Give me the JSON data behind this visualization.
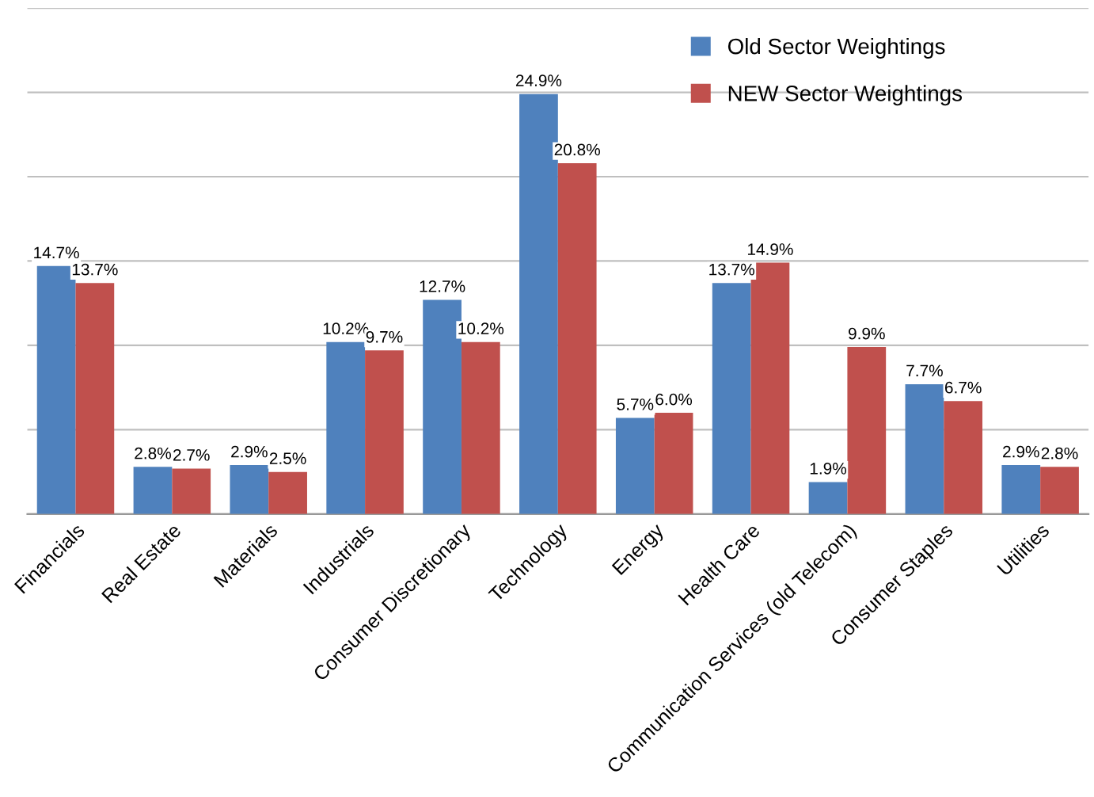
{
  "chart_data": {
    "type": "bar",
    "categories": [
      "Financials",
      "Real Estate",
      "Materials",
      "Industrials",
      "Consumer Discretionary",
      "Technology",
      "Energy",
      "Health Care",
      "Communication Services (old Telecom)",
      "Consumer Staples",
      "Utilities"
    ],
    "series": [
      {
        "name": "Old Sector Weightings",
        "color": "#4f81bd",
        "values": [
          14.7,
          2.8,
          2.9,
          10.2,
          12.7,
          24.9,
          5.7,
          13.7,
          1.9,
          7.7,
          2.9
        ],
        "value_labels": [
          "14.7%",
          "2.8%",
          "2.9%",
          "10.2%",
          "12.7%",
          "24.9%",
          "5.7%",
          "13.7%",
          "1.9%",
          "7.7%",
          "2.9%"
        ]
      },
      {
        "name": "NEW Sector Weightings",
        "color": "#c0504d",
        "values": [
          13.7,
          2.7,
          2.5,
          9.7,
          10.2,
          20.8,
          6.0,
          14.9,
          9.9,
          6.7,
          2.8
        ],
        "value_labels": [
          "13.7%",
          "2.7%",
          "2.5%",
          "9.7%",
          "10.2%",
          "20.8%",
          "6.0%",
          "14.9%",
          "9.9%",
          "6.7%",
          "2.8%"
        ]
      }
    ],
    "ylim": [
      0,
      30
    ],
    "yticks": [
      {
        "value": 0,
        "label": null
      },
      {
        "value": 5,
        "label": null
      },
      {
        "value": 10,
        "label": null
      },
      {
        "value": 15,
        "label": null
      },
      {
        "value": 20,
        "label": null
      },
      {
        "value": 25,
        "label": null
      },
      {
        "value": 30,
        "label": null
      }
    ],
    "tick_labels": "x",
    "grid": "y",
    "legend": "top right"
  }
}
